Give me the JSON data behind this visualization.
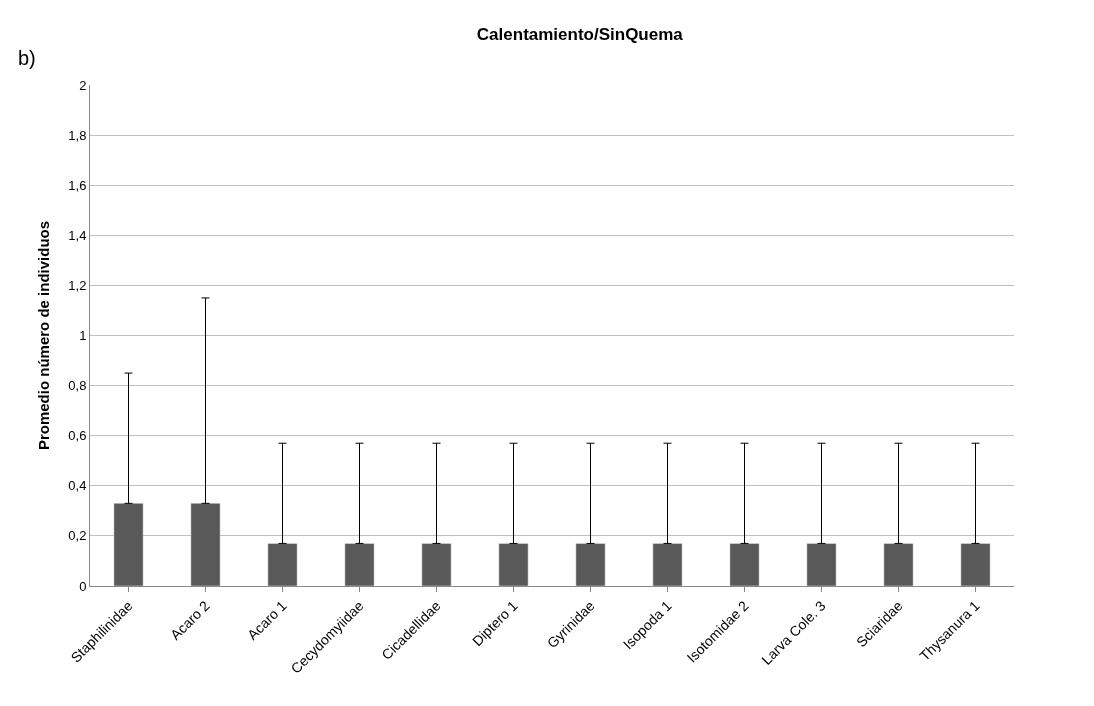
{
  "chart_data": {
    "type": "bar",
    "title": "Calentamiento/SinQuema",
    "ylabel": "Promedio número de individuos",
    "annotations": [
      "b)"
    ],
    "categories": [
      "Staphilinidae",
      "Acaro 2",
      "Acaro 1",
      "Cecydomyiidae",
      "Cicadellidae",
      "Diptero 1",
      "Gyrinidae",
      "Isopoda 1",
      "Isotomidae 2",
      "Larva Cole. 3",
      "Sciaridae",
      "Thysanura 1"
    ],
    "values": [
      0.33,
      0.33,
      0.17,
      0.17,
      0.17,
      0.17,
      0.17,
      0.17,
      0.17,
      0.17,
      0.17,
      0.17
    ],
    "errors": [
      [
        0.33,
        0.85
      ],
      [
        0.33,
        1.15
      ],
      [
        0.17,
        0.57
      ],
      [
        0.17,
        0.57
      ],
      [
        0.17,
        0.57
      ],
      [
        0.17,
        0.57
      ],
      [
        0.17,
        0.57
      ],
      [
        0.17,
        0.57
      ],
      [
        0.17,
        0.57
      ],
      [
        0.17,
        0.57
      ],
      [
        0.17,
        0.57
      ],
      [
        0.17,
        0.57
      ]
    ],
    "color": "#595959",
    "ylim": [
      0,
      2
    ],
    "yticks": [
      0,
      {
        "value": 0.2,
        "label": "0,2"
      },
      {
        "value": 0.4,
        "label": "0,4"
      },
      {
        "value": 0.6,
        "label": "0,6"
      },
      {
        "value": 0.8,
        "label": "0,8"
      },
      1,
      {
        "value": 1.2,
        "label": "1,2"
      },
      {
        "value": 1.4,
        "label": "1,4"
      },
      {
        "value": 1.6,
        "label": "1,6"
      },
      {
        "value": 1.8,
        "label": "1,8"
      },
      2
    ],
    "grid": "y",
    "legend": false
  }
}
